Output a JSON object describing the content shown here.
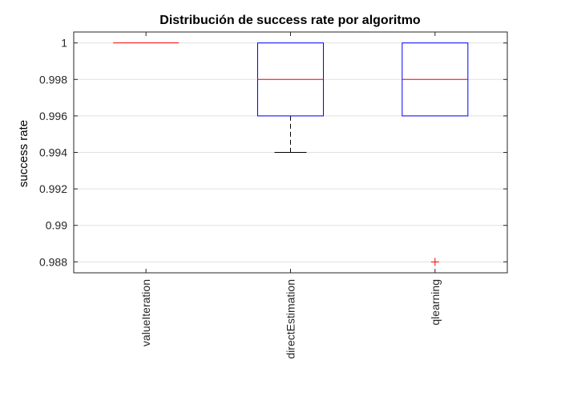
{
  "chart_data": {
    "type": "box",
    "title": "Distribución de success rate por algoritmo",
    "ylabel": "success rate",
    "xlabel": "",
    "ylim": [
      0.9874,
      1.0006
    ],
    "yticks": [
      0.988,
      0.99,
      0.992,
      0.994,
      0.996,
      0.998,
      1
    ],
    "ytick_labels": [
      "0.988",
      "0.99",
      "0.992",
      "0.994",
      "0.996",
      "0.998",
      "1"
    ],
    "grid": "y",
    "categories": [
      "valueIteration",
      "directEstimation",
      "qlearning"
    ],
    "boxes": [
      {
        "category": "valueIteration",
        "whisker_low": 1.0,
        "q1": 1.0,
        "median": 1.0,
        "q3": 1.0,
        "whisker_high": 1.0,
        "outliers": []
      },
      {
        "category": "directEstimation",
        "whisker_low": 0.994,
        "q1": 0.996,
        "median": 0.998,
        "q3": 1.0,
        "whisker_high": 1.0,
        "outliers": []
      },
      {
        "category": "qlearning",
        "whisker_low": 0.996,
        "q1": 0.996,
        "median": 0.998,
        "q3": 1.0,
        "whisker_high": 1.0,
        "outliers": [
          0.988
        ]
      }
    ],
    "colors": {
      "box": "#0000ff",
      "median": "#ff0000",
      "whisker": "#000000",
      "outlier": "#ff0000",
      "grid": "#e0e0e0",
      "axis": "#262626"
    }
  }
}
